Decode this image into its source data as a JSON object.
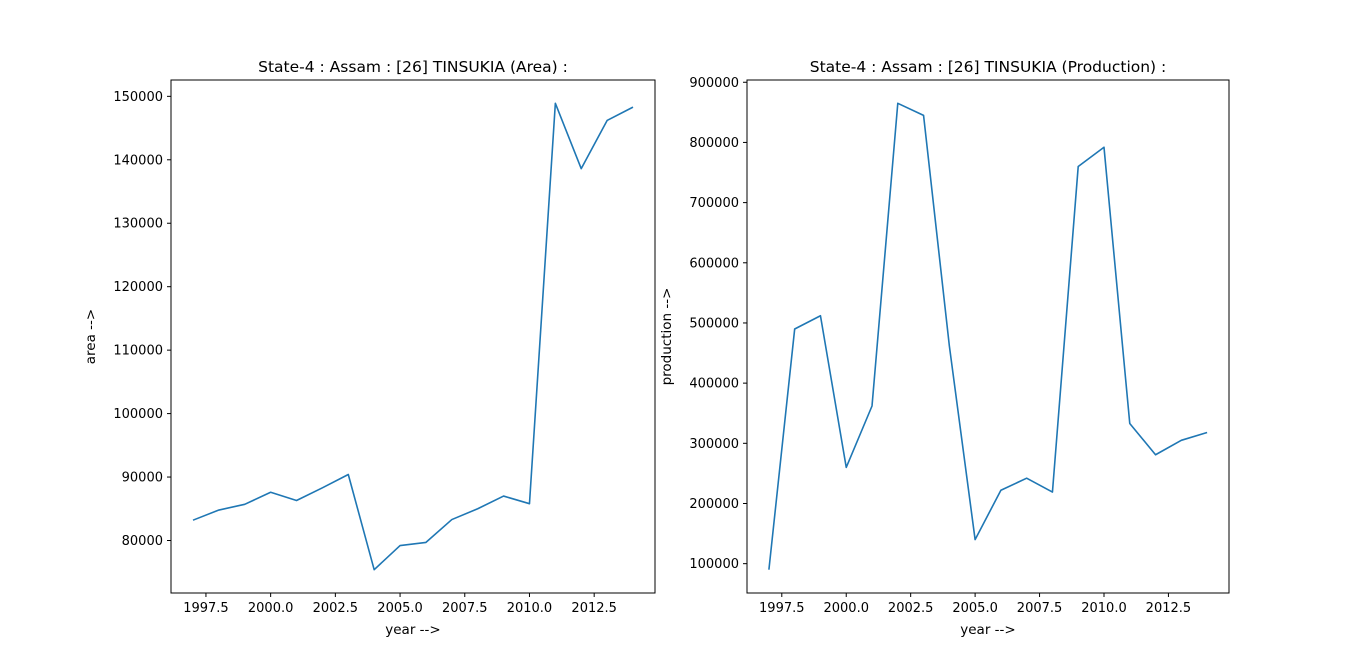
{
  "figure": {
    "background": "#ffffff",
    "accent_line_color": "#1f77b4",
    "axis_color": "#000000"
  },
  "chart_data": [
    {
      "type": "line",
      "title": "State-4 : Assam : [26] TINSUKIA (Area) :",
      "xlabel": "year -->",
      "ylabel": "area -->",
      "legend_position": "none",
      "grid": false,
      "series_color": "#1f77b4",
      "x": [
        1997,
        1998,
        1999,
        2000,
        2001,
        2002,
        2003,
        2004,
        2005,
        2006,
        2007,
        2008,
        2009,
        2010,
        2011,
        2012,
        2013,
        2014
      ],
      "values": [
        83200,
        84800,
        85700,
        87600,
        86300,
        88300,
        90400,
        75400,
        79200,
        79700,
        83300,
        85000,
        87000,
        85800,
        148900,
        138600,
        146200,
        148300
      ],
      "xlim": [
        1996.15,
        2014.85
      ],
      "ylim": [
        71725,
        152575
      ],
      "xticks": {
        "values": [
          1997.5,
          2000.0,
          2002.5,
          2005.0,
          2007.5,
          2010.0,
          2012.5
        ],
        "labels": [
          "1997.5",
          "2000.0",
          "2002.5",
          "2005.0",
          "2007.5",
          "2010.0",
          "2012.5"
        ]
      },
      "yticks": {
        "values": [
          80000,
          90000,
          100000,
          110000,
          120000,
          130000,
          140000,
          150000
        ],
        "labels": [
          "80000",
          "90000",
          "100000",
          "110000",
          "120000",
          "130000",
          "140000",
          "150000"
        ]
      }
    },
    {
      "type": "line",
      "title": "State-4 : Assam : [26] TINSUKIA (Production) :",
      "xlabel": "year -->",
      "ylabel": "production -->",
      "legend_position": "none",
      "grid": false,
      "series_color": "#1f77b4",
      "x": [
        1997,
        1998,
        1999,
        2000,
        2001,
        2002,
        2003,
        2004,
        2005,
        2006,
        2007,
        2008,
        2009,
        2010,
        2011,
        2012,
        2013,
        2014
      ],
      "values": [
        90000,
        490000,
        512000,
        260000,
        362000,
        865000,
        845000,
        462000,
        140000,
        222000,
        242000,
        219000,
        760000,
        792000,
        333000,
        281000,
        305000,
        318000
      ],
      "xlim": [
        1996.15,
        2014.85
      ],
      "ylim": [
        51250,
        903750
      ],
      "xticks": {
        "values": [
          1997.5,
          2000.0,
          2002.5,
          2005.0,
          2007.5,
          2010.0,
          2012.5
        ],
        "labels": [
          "1997.5",
          "2000.0",
          "2002.5",
          "2005.0",
          "2007.5",
          "2010.0",
          "2012.5"
        ]
      },
      "yticks": {
        "values": [
          100000,
          200000,
          300000,
          400000,
          500000,
          600000,
          700000,
          800000,
          900000
        ],
        "labels": [
          "100000",
          "200000",
          "300000",
          "400000",
          "500000",
          "600000",
          "700000",
          "800000",
          "900000"
        ]
      }
    }
  ]
}
